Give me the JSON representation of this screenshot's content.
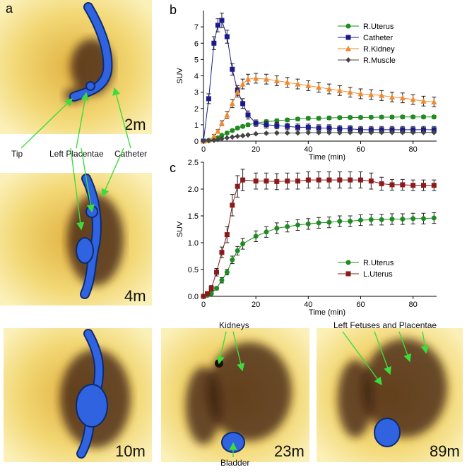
{
  "panel_labels": [
    "a",
    "b",
    "c"
  ],
  "images": [
    {
      "label": "2m"
    },
    {
      "label": "4m"
    },
    {
      "label": "10m"
    },
    {
      "label": "23m"
    },
    {
      "label": "89m"
    }
  ],
  "annotations": [
    "Tip",
    "Left Placentae",
    "Catheter",
    "Kidneys",
    "Left Fetuses and Placentae",
    "Bladder"
  ],
  "chart_data": [
    {
      "type": "line",
      "xlabel": "Time (min)",
      "ylabel": "SUV",
      "xlim": [
        0,
        89
      ],
      "ylim": [
        0,
        8
      ],
      "xticks": [
        0,
        20,
        40,
        60,
        80
      ],
      "yticks": [
        0,
        1,
        2,
        3,
        4,
        5,
        6,
        7
      ],
      "legend": "upper right",
      "x": [
        0,
        2,
        4,
        5.5,
        7,
        9,
        11,
        13,
        15,
        17,
        20,
        24,
        28,
        32,
        36,
        40,
        44,
        48,
        52,
        56,
        60,
        64,
        68,
        72,
        76,
        80,
        84,
        88
      ],
      "series": [
        {
          "name": "R.Uterus",
          "color": "#1e8c1e",
          "marker": "circle",
          "values": [
            0,
            0.05,
            0.1,
            0.2,
            0.35,
            0.5,
            0.65,
            0.8,
            0.9,
            1.0,
            1.1,
            1.2,
            1.25,
            1.3,
            1.35,
            1.4,
            1.4,
            1.42,
            1.44,
            1.45,
            1.45,
            1.46,
            1.47,
            1.47,
            1.48,
            1.48,
            1.48,
            1.48
          ],
          "errors": [
            0,
            0.02,
            0.03,
            0.04,
            0.05,
            0.06,
            0.07,
            0.08,
            0.09,
            0.1,
            0.1,
            0.1,
            0.1,
            0.1,
            0.1,
            0.1,
            0.1,
            0.1,
            0.1,
            0.1,
            0.1,
            0.1,
            0.1,
            0.1,
            0.1,
            0.1,
            0.1,
            0.1
          ]
        },
        {
          "name": "Catheter",
          "color": "#1a1a8c",
          "marker": "square",
          "values": [
            0,
            2.6,
            6.0,
            7.1,
            7.4,
            6.4,
            4.4,
            3.1,
            2.3,
            1.6,
            1.1,
            1.0,
            0.95,
            0.9,
            0.85,
            0.85,
            0.8,
            0.8,
            0.75,
            0.75,
            0.7,
            0.7,
            0.7,
            0.7,
            0.7,
            0.7,
            0.7,
            0.7
          ],
          "errors": [
            0,
            0.3,
            0.4,
            0.4,
            0.45,
            0.4,
            0.35,
            0.3,
            0.3,
            0.25,
            0.2,
            0.2,
            0.2,
            0.2,
            0.2,
            0.2,
            0.2,
            0.2,
            0.2,
            0.2,
            0.2,
            0.2,
            0.2,
            0.2,
            0.2,
            0.2,
            0.2,
            0.2
          ]
        },
        {
          "name": "R.Kidney",
          "color": "#f28a30",
          "marker": "triangle",
          "values": [
            0,
            0.05,
            0.3,
            0.6,
            1.1,
            1.6,
            2.3,
            3.0,
            3.5,
            3.8,
            3.85,
            3.8,
            3.7,
            3.6,
            3.5,
            3.4,
            3.3,
            3.2,
            3.1,
            3.0,
            2.9,
            2.85,
            2.8,
            2.7,
            2.65,
            2.55,
            2.45,
            2.4
          ],
          "errors": [
            0,
            0.05,
            0.1,
            0.1,
            0.15,
            0.2,
            0.25,
            0.3,
            0.3,
            0.3,
            0.3,
            0.3,
            0.3,
            0.3,
            0.3,
            0.3,
            0.3,
            0.3,
            0.3,
            0.3,
            0.3,
            0.3,
            0.3,
            0.3,
            0.3,
            0.3,
            0.3,
            0.3
          ]
        },
        {
          "name": "R.Muscle",
          "color": "#444444",
          "marker": "diamond",
          "values": [
            0,
            0.02,
            0.05,
            0.1,
            0.15,
            0.2,
            0.25,
            0.3,
            0.33,
            0.38,
            0.45,
            0.48,
            0.5,
            0.5,
            0.5,
            0.52,
            0.52,
            0.52,
            0.52,
            0.53,
            0.53,
            0.53,
            0.53,
            0.53,
            0.53,
            0.53,
            0.53,
            0.53
          ],
          "errors": [
            0,
            0.01,
            0.02,
            0.02,
            0.03,
            0.03,
            0.04,
            0.04,
            0.05,
            0.05,
            0.05,
            0.05,
            0.05,
            0.05,
            0.05,
            0.05,
            0.05,
            0.05,
            0.05,
            0.05,
            0.05,
            0.05,
            0.05,
            0.05,
            0.05,
            0.05,
            0.05,
            0.05
          ]
        }
      ]
    },
    {
      "type": "line",
      "xlabel": "Time (min)",
      "ylabel": "SUV",
      "xlim": [
        0,
        89
      ],
      "ylim": [
        0,
        2.5
      ],
      "xticks": [
        0,
        20,
        40,
        60,
        80
      ],
      "yticks": [
        {
          "value": 0,
          "label": "0.0"
        },
        0.5,
        {
          "value": 1,
          "label": "1.0"
        },
        1.5,
        {
          "value": 2,
          "label": "2.0"
        },
        2.5
      ],
      "legend": "lower right",
      "x": [
        0,
        1.5,
        3,
        5,
        7,
        9,
        11,
        13,
        15,
        20,
        24,
        28,
        32,
        36,
        40,
        44,
        48,
        52,
        56,
        60,
        64,
        68,
        72,
        76,
        80,
        84,
        88
      ],
      "series": [
        {
          "name": "R.Uterus",
          "color": "#1e8c1e",
          "marker": "circle",
          "values": [
            0,
            0.02,
            0.05,
            0.15,
            0.3,
            0.45,
            0.68,
            0.85,
            0.98,
            1.12,
            1.2,
            1.27,
            1.3,
            1.33,
            1.35,
            1.37,
            1.38,
            1.4,
            1.4,
            1.42,
            1.43,
            1.43,
            1.44,
            1.44,
            1.45,
            1.45,
            1.46
          ],
          "errors": [
            0.01,
            0.02,
            0.02,
            0.03,
            0.05,
            0.05,
            0.07,
            0.08,
            0.1,
            0.1,
            0.1,
            0.1,
            0.1,
            0.1,
            0.1,
            0.1,
            0.1,
            0.1,
            0.1,
            0.1,
            0.1,
            0.1,
            0.1,
            0.1,
            0.1,
            0.1,
            0.1
          ]
        },
        {
          "name": "L.Uterus",
          "color": "#8c1a1a",
          "marker": "square",
          "values": [
            0,
            0.05,
            0.15,
            0.45,
            0.82,
            1.15,
            1.7,
            2.05,
            2.17,
            2.15,
            2.15,
            2.14,
            2.15,
            2.15,
            2.17,
            2.17,
            2.17,
            2.17,
            2.17,
            2.17,
            2.15,
            2.1,
            2.08,
            2.08,
            2.07,
            2.07,
            2.07
          ],
          "errors": [
            0.02,
            0.03,
            0.05,
            0.07,
            0.1,
            0.15,
            0.2,
            0.2,
            0.2,
            0.15,
            0.15,
            0.15,
            0.15,
            0.15,
            0.15,
            0.15,
            0.15,
            0.15,
            0.15,
            0.15,
            0.15,
            0.12,
            0.1,
            0.1,
            0.1,
            0.1,
            0.1
          ]
        }
      ]
    }
  ]
}
